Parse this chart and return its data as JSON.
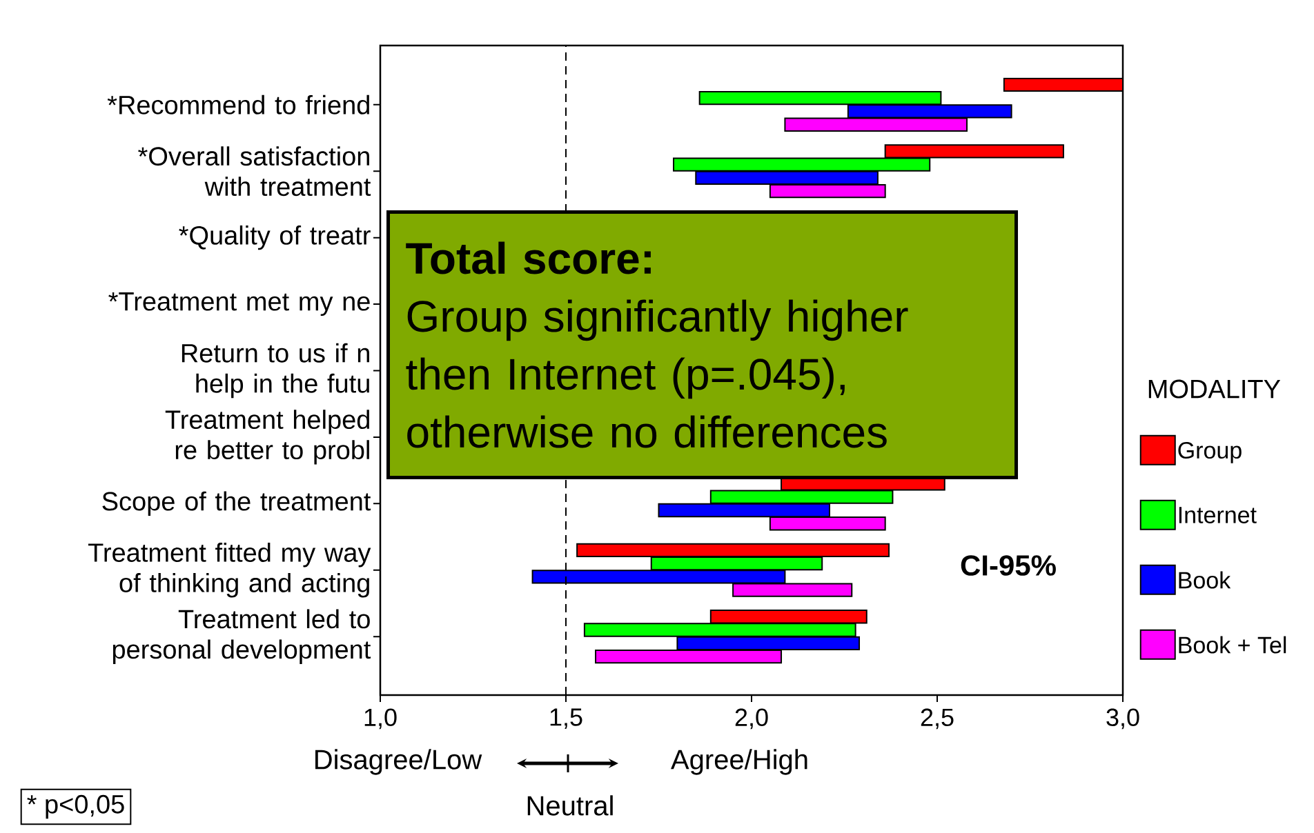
{
  "chart_data": {
    "type": "bar",
    "orientation": "horizontal",
    "categories": [
      "*Recommend to friend",
      "*Overall satisfaction with treatment",
      "*Quality of treatr",
      "*Treatment met my ne",
      "Return to us if n help in the futu",
      "Treatment helped re better to probl",
      "Scope of the treatment",
      "Treatment fitted my way of thinking and acting",
      "Treatment led to personal development"
    ],
    "series": [
      {
        "name": "Group",
        "color": "#ff0000",
        "base": [
          2.68,
          2.36,
          null,
          null,
          null,
          null,
          2.08,
          1.53,
          1.89
        ],
        "values": [
          0.32,
          0.48,
          null,
          null,
          null,
          null,
          0.44,
          0.84,
          0.42
        ]
      },
      {
        "name": "Internet",
        "color": "#00ff00",
        "base": [
          1.86,
          1.79,
          null,
          null,
          null,
          null,
          1.89,
          1.73,
          1.55
        ],
        "values": [
          0.65,
          0.69,
          null,
          null,
          null,
          null,
          0.49,
          0.46,
          0.73
        ]
      },
      {
        "name": "Book",
        "color": "#0000ff",
        "base": [
          2.26,
          1.85,
          null,
          null,
          null,
          null,
          1.75,
          1.41,
          1.8
        ],
        "values": [
          0.44,
          0.49,
          null,
          null,
          null,
          null,
          0.46,
          0.68,
          0.49
        ]
      },
      {
        "name": "Book + Tel",
        "color": "#ff00ff",
        "base": [
          2.09,
          2.05,
          null,
          null,
          null,
          null,
          2.05,
          1.95,
          1.58
        ],
        "values": [
          0.49,
          0.31,
          null,
          null,
          null,
          null,
          0.31,
          0.32,
          0.5
        ]
      }
    ],
    "xlim": [
      1,
      3
    ],
    "xticks": [
      {
        "value": 1,
        "label": "1,0"
      },
      {
        "value": 1.5,
        "label": "1,5"
      },
      {
        "value": 2,
        "label": "2,0"
      },
      {
        "value": 2.5,
        "label": "2,5"
      },
      {
        "value": 3,
        "label": "3,0"
      }
    ],
    "ref_lines": [
      {
        "axis": "x",
        "value": 1.5,
        "line_style": "dashed"
      }
    ],
    "legend": "right",
    "legend_title": "MODALITY",
    "annotations": [
      "Total score:",
      "Group significantly higher then Internet (p=.045), otherwise no differences",
      "CI-95%",
      "Disagree/Low",
      "Neutral",
      "Agree/High",
      "* p<0,05"
    ]
  }
}
